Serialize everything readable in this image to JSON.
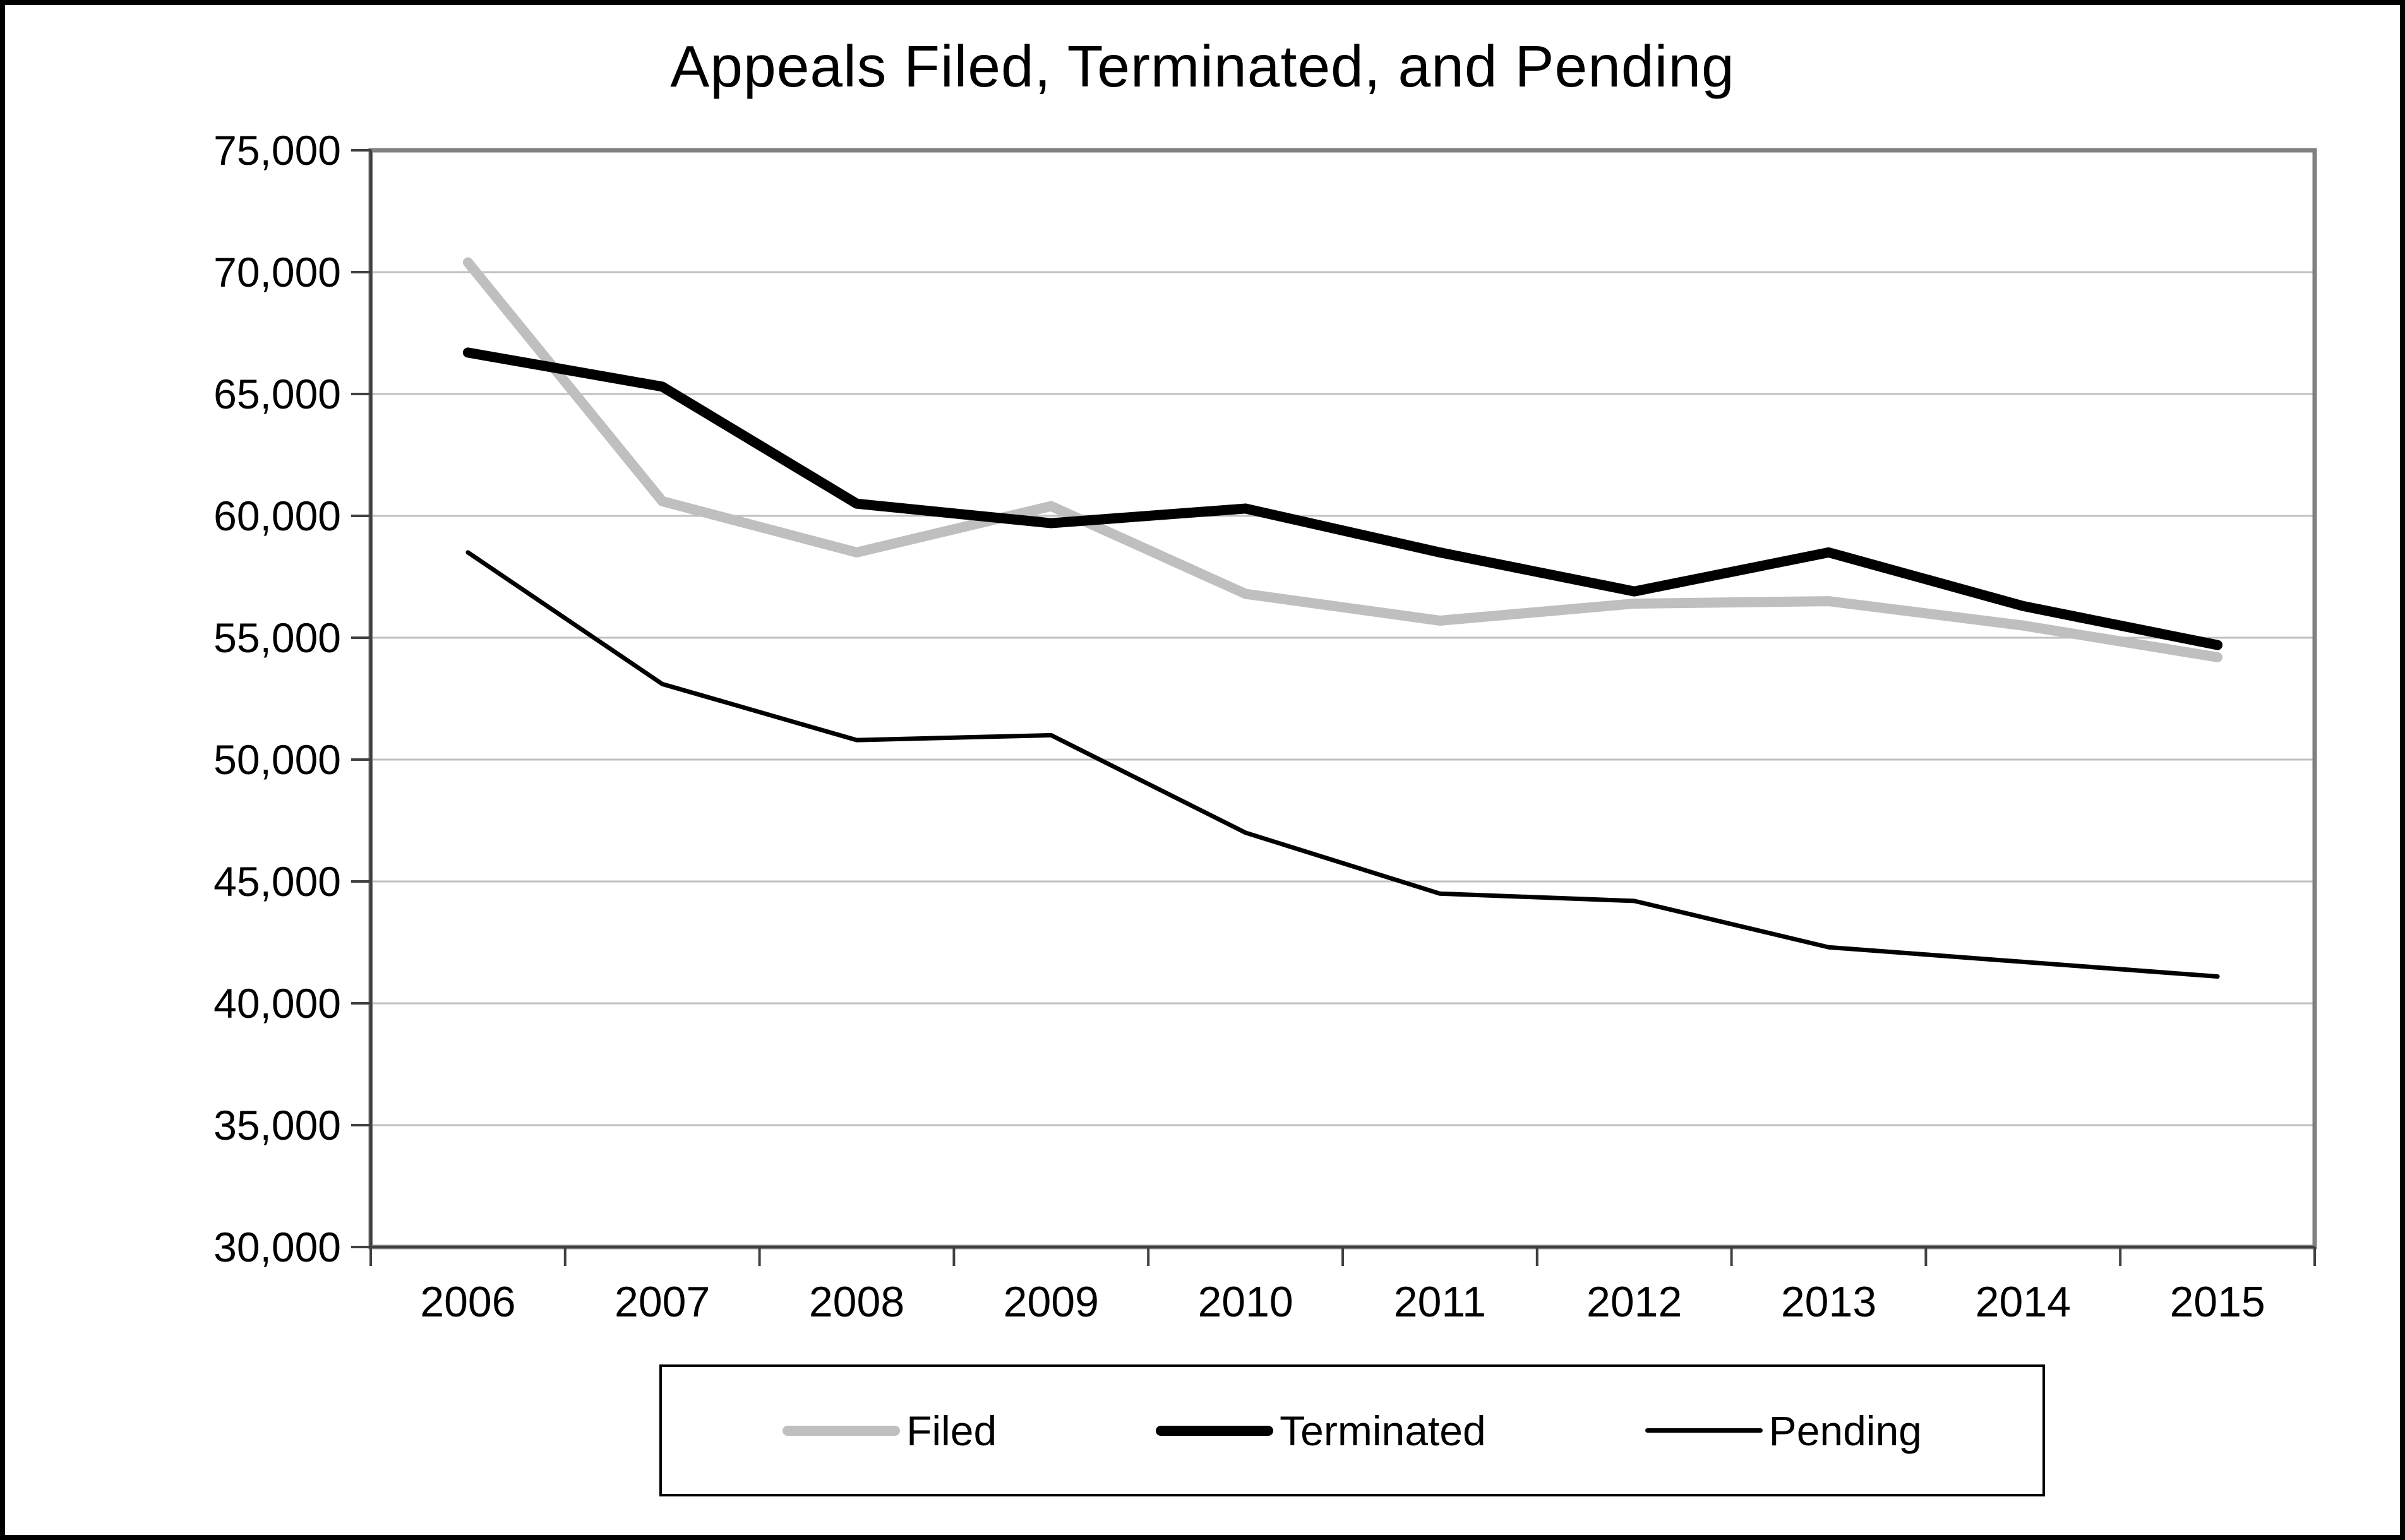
{
  "title": "Appeals Filed, Terminated, and Pending",
  "colors": {
    "background": "#ffffff",
    "figure_border": "#000000",
    "plot_border": "#808080",
    "gridline": "#c0c0c0",
    "axis_tick": "#404040",
    "text": "#000000",
    "filed_line": "#bfbfbf",
    "terminated_line": "#000000",
    "pending_line": "#000000"
  },
  "legend": {
    "items": [
      {
        "label": "Filed"
      },
      {
        "label": "Terminated"
      },
      {
        "label": "Pending"
      }
    ]
  },
  "chart_data": {
    "type": "line",
    "title": "Appeals Filed, Terminated, and Pending",
    "categories": [
      "2006",
      "2007",
      "2008",
      "2009",
      "2010",
      "2011",
      "2012",
      "2013",
      "2014",
      "2015"
    ],
    "series": [
      {
        "name": "Filed",
        "color": "#bfbfbf",
        "stroke_width": 16,
        "values": [
          70400,
          60600,
          58500,
          60400,
          56800,
          55700,
          56400,
          56500,
          55500,
          54200
        ]
      },
      {
        "name": "Terminated",
        "color": "#000000",
        "stroke_width": 16,
        "values": [
          66700,
          65300,
          60500,
          59700,
          60300,
          58500,
          56900,
          58500,
          56300,
          54700
        ]
      },
      {
        "name": "Pending",
        "color": "#000000",
        "stroke_width": 7,
        "values": [
          58500,
          53100,
          50800,
          51000,
          47000,
          44500,
          44200,
          42300,
          41700,
          41100
        ]
      }
    ],
    "xlabel": "",
    "ylabel": "",
    "ylim": [
      30000,
      75000
    ],
    "ytick_step": 5000,
    "ytick_labels": [
      "30,000",
      "35,000",
      "40,000",
      "45,000",
      "50,000",
      "55,000",
      "60,000",
      "65,000",
      "70,000",
      "75,000"
    ],
    "grid": true,
    "gridlines": "horizontal",
    "legend_position": "bottom",
    "x_axis_tick_placement": "between-categories"
  }
}
